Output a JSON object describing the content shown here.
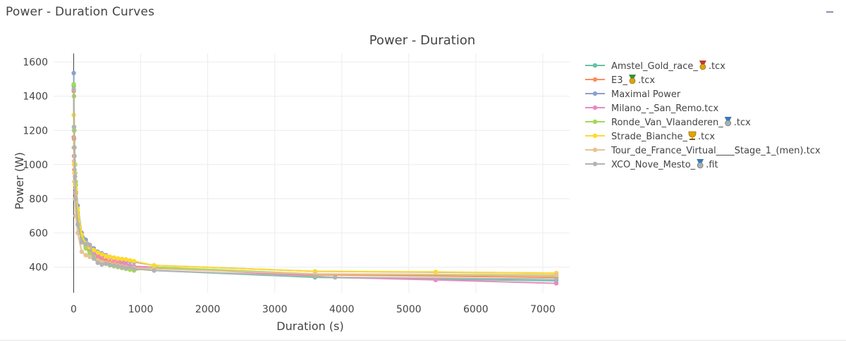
{
  "panel": {
    "title": "Power - Duration Curves",
    "collapse_icon": "minus-icon"
  },
  "chart_data": {
    "type": "line",
    "title": "Power - Duration",
    "xlabel": "Duration (s)",
    "ylabel": "Power (W)",
    "xlim": [
      -300,
      7400
    ],
    "ylim": [
      250,
      1650
    ],
    "xticks": [
      0,
      1000,
      2000,
      3000,
      4000,
      5000,
      6000,
      7000
    ],
    "yticks": [
      400,
      600,
      800,
      1000,
      1200,
      1400,
      1600
    ],
    "grid": true,
    "legend_position": "right",
    "series": [
      {
        "name": "Amstel_Gold_race_",
        "name_suffix": ".tcx",
        "medal": "gold",
        "color": "#66c2a5",
        "points": [
          [
            1,
            1460
          ],
          [
            5,
            1200
          ],
          [
            10,
            1050
          ],
          [
            20,
            950
          ],
          [
            30,
            880
          ],
          [
            60,
            700
          ],
          [
            120,
            560
          ],
          [
            180,
            520
          ],
          [
            240,
            490
          ],
          [
            300,
            470
          ],
          [
            360,
            450
          ],
          [
            420,
            440
          ],
          [
            480,
            430
          ],
          [
            540,
            420
          ],
          [
            600,
            415
          ],
          [
            660,
            410
          ],
          [
            720,
            405
          ],
          [
            780,
            400
          ],
          [
            840,
            395
          ],
          [
            900,
            390
          ],
          [
            1200,
            380
          ],
          [
            3600,
            340
          ],
          [
            7200,
            320
          ]
        ]
      },
      {
        "name": "E3_",
        "name_suffix": ".tcx",
        "medal": "green",
        "color": "#fc8d62",
        "points": [
          [
            1,
            1430
          ],
          [
            5,
            1150
          ],
          [
            10,
            1000
          ],
          [
            20,
            900
          ],
          [
            30,
            830
          ],
          [
            60,
            690
          ],
          [
            120,
            560
          ],
          [
            180,
            530
          ],
          [
            240,
            500
          ],
          [
            300,
            480
          ],
          [
            360,
            460
          ],
          [
            420,
            450
          ],
          [
            480,
            440
          ],
          [
            540,
            430
          ],
          [
            600,
            425
          ],
          [
            660,
            420
          ],
          [
            720,
            415
          ],
          [
            780,
            410
          ],
          [
            840,
            405
          ],
          [
            900,
            400
          ],
          [
            1200,
            395
          ],
          [
            3600,
            355
          ],
          [
            7200,
            340
          ]
        ]
      },
      {
        "name": "Maximal Power",
        "name_suffix": "",
        "medal": "",
        "color": "#8da0cb",
        "points": [
          [
            1,
            1535
          ],
          [
            5,
            1220
          ],
          [
            10,
            1100
          ],
          [
            20,
            1000
          ],
          [
            30,
            900
          ],
          [
            60,
            760
          ],
          [
            120,
            600
          ],
          [
            180,
            560
          ],
          [
            240,
            530
          ],
          [
            300,
            510
          ],
          [
            360,
            490
          ],
          [
            420,
            480
          ],
          [
            480,
            470
          ],
          [
            540,
            460
          ],
          [
            600,
            455
          ],
          [
            660,
            450
          ],
          [
            720,
            445
          ],
          [
            780,
            440
          ],
          [
            840,
            435
          ],
          [
            900,
            430
          ],
          [
            1200,
            410
          ],
          [
            3600,
            375
          ],
          [
            7200,
            365
          ]
        ]
      },
      {
        "name": "Milano_-_San_Remo.tcx",
        "name_suffix": "",
        "medal": "",
        "color": "#e78ac3",
        "points": [
          [
            1,
            1160
          ],
          [
            5,
            1050
          ],
          [
            10,
            970
          ],
          [
            20,
            900
          ],
          [
            30,
            840
          ],
          [
            60,
            700
          ],
          [
            120,
            570
          ],
          [
            180,
            530
          ],
          [
            240,
            500
          ],
          [
            300,
            480
          ],
          [
            360,
            470
          ],
          [
            420,
            460
          ],
          [
            480,
            465
          ],
          [
            540,
            455
          ],
          [
            600,
            445
          ],
          [
            660,
            440
          ],
          [
            720,
            430
          ],
          [
            780,
            420
          ],
          [
            840,
            410
          ],
          [
            900,
            405
          ],
          [
            1200,
            400
          ],
          [
            3900,
            340
          ],
          [
            5400,
            325
          ],
          [
            7200,
            305
          ]
        ]
      },
      {
        "name": "Ronde_Van_Vlaanderen_",
        "name_suffix": ".tcx",
        "medal": "silver",
        "color": "#a6d854",
        "points": [
          [
            1,
            1470
          ],
          [
            5,
            1400
          ],
          [
            10,
            1200
          ],
          [
            20,
            1000
          ],
          [
            30,
            900
          ],
          [
            60,
            720
          ],
          [
            120,
            560
          ],
          [
            180,
            510
          ],
          [
            240,
            480
          ],
          [
            300,
            460
          ],
          [
            360,
            440
          ],
          [
            420,
            430
          ],
          [
            480,
            420
          ],
          [
            540,
            410
          ],
          [
            600,
            405
          ],
          [
            660,
            400
          ],
          [
            720,
            395
          ],
          [
            780,
            390
          ],
          [
            840,
            385
          ],
          [
            900,
            380
          ],
          [
            1200,
            400
          ],
          [
            3600,
            360
          ],
          [
            7200,
            350
          ]
        ]
      },
      {
        "name": "Strade_Bianche_",
        "name_suffix": ".tcx",
        "medal": "trophy",
        "color": "#ffd92f",
        "points": [
          [
            1,
            1290
          ],
          [
            5,
            1000
          ],
          [
            10,
            950
          ],
          [
            20,
            880
          ],
          [
            30,
            860
          ],
          [
            60,
            740
          ],
          [
            120,
            590
          ],
          [
            180,
            540
          ],
          [
            240,
            515
          ],
          [
            300,
            500
          ],
          [
            360,
            485
          ],
          [
            420,
            475
          ],
          [
            480,
            465
          ],
          [
            540,
            460
          ],
          [
            600,
            455
          ],
          [
            660,
            450
          ],
          [
            720,
            448
          ],
          [
            780,
            445
          ],
          [
            840,
            440
          ],
          [
            900,
            435
          ],
          [
            1200,
            410
          ],
          [
            3600,
            375
          ],
          [
            5400,
            372
          ],
          [
            7200,
            365
          ]
        ]
      },
      {
        "name": "Tour_de_France_Virtual____Stage_1_(men).tcx",
        "name_suffix": "",
        "medal": "",
        "color": "#e5c494",
        "points": [
          [
            1,
            1100
          ],
          [
            5,
            1020
          ],
          [
            10,
            900
          ],
          [
            20,
            800
          ],
          [
            30,
            700
          ],
          [
            60,
            600
          ],
          [
            120,
            490
          ],
          [
            180,
            470
          ],
          [
            240,
            460
          ],
          [
            300,
            450
          ],
          [
            360,
            440
          ],
          [
            420,
            430
          ],
          [
            480,
            425
          ],
          [
            540,
            420
          ],
          [
            600,
            415
          ],
          [
            660,
            410
          ],
          [
            720,
            405
          ],
          [
            780,
            400
          ],
          [
            840,
            398
          ],
          [
            900,
            395
          ],
          [
            1200,
            390
          ],
          [
            3600,
            360
          ],
          [
            7200,
            355
          ]
        ]
      },
      {
        "name": "XCO_Nove_Mesto_",
        "name_suffix": ".fit",
        "medal": "silver",
        "color": "#b3b3b3",
        "points": [
          [
            1,
            1440
          ],
          [
            5,
            1220
          ],
          [
            10,
            1100
          ],
          [
            20,
            930
          ],
          [
            30,
            800
          ],
          [
            60,
            650
          ],
          [
            120,
            545
          ],
          [
            180,
            535
          ],
          [
            240,
            530
          ],
          [
            300,
            450
          ],
          [
            360,
            425
          ],
          [
            420,
            415
          ],
          [
            480,
            420
          ],
          [
            540,
            415
          ],
          [
            600,
            410
          ],
          [
            660,
            405
          ],
          [
            720,
            400
          ],
          [
            780,
            395
          ],
          [
            840,
            400
          ],
          [
            900,
            390
          ],
          [
            1200,
            380
          ],
          [
            3600,
            345
          ],
          [
            3900,
            340
          ],
          [
            7200,
            330
          ]
        ]
      }
    ]
  }
}
